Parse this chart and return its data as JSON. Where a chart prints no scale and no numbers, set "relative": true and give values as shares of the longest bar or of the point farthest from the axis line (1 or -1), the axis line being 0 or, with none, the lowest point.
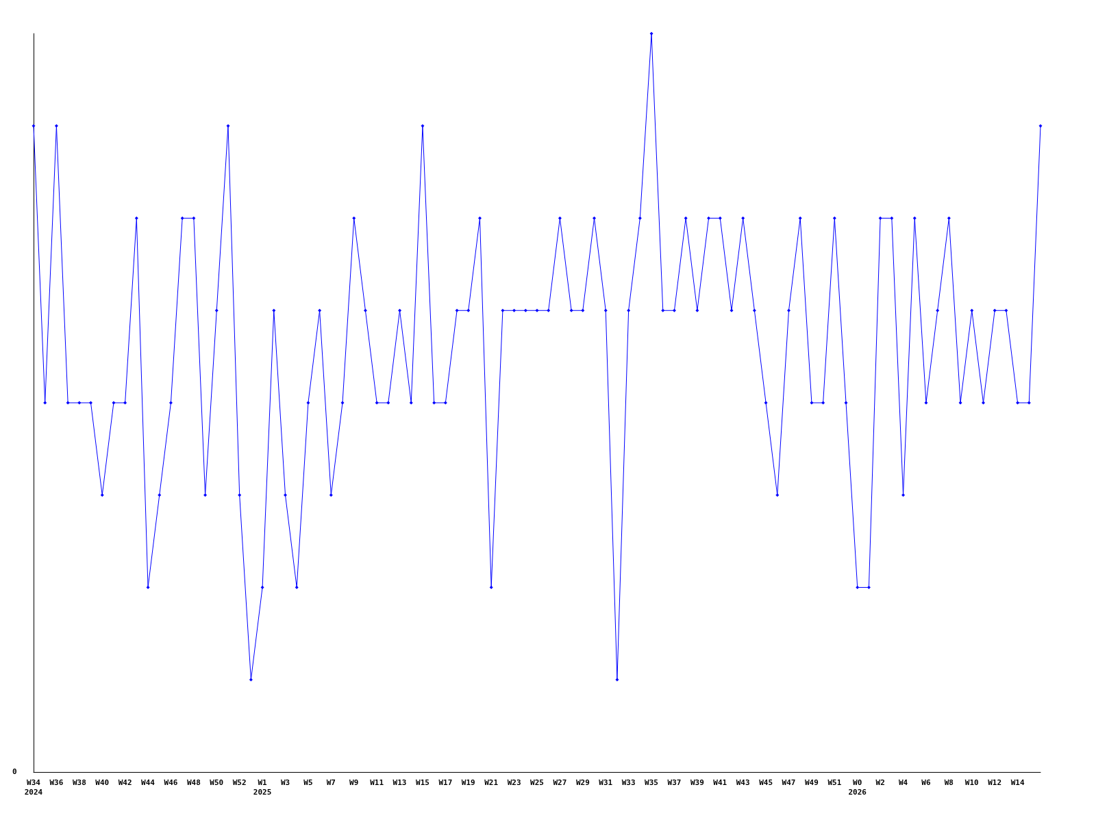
{
  "chart_data": {
    "type": "line",
    "relative": true,
    "color": "#0000ff",
    "marker": "diamond",
    "annotations": [
      "0"
    ],
    "categories": [
      "W34\n2024",
      null,
      "W36",
      null,
      "W38",
      null,
      "W40",
      null,
      "W42",
      null,
      "W44",
      null,
      "W46",
      null,
      "W48",
      null,
      "W50",
      null,
      "W52",
      null,
      "W1\n2025",
      null,
      "W3",
      null,
      "W5",
      null,
      "W7",
      null,
      "W9",
      null,
      "W11",
      null,
      "W13",
      null,
      "W15",
      null,
      "W17",
      null,
      "W19",
      null,
      "W21",
      null,
      "W23",
      null,
      "W25",
      null,
      "W27",
      null,
      "W29",
      null,
      "W31",
      null,
      "W33",
      null,
      "W35",
      null,
      "W37",
      null,
      "W39",
      null,
      "W41",
      null,
      "W43",
      null,
      "W45",
      null,
      "W47",
      null,
      "W49",
      null,
      "W51",
      null,
      "W0\n2026",
      null,
      "W2",
      null,
      "W4",
      null,
      "W6",
      null,
      "W8",
      null,
      "W10",
      null,
      "W12",
      null,
      "W14",
      null,
      null
    ],
    "values": [
      0.875,
      0.5,
      0.875,
      0.5,
      0.5,
      0.5,
      0.375,
      0.5,
      0.5,
      0.75,
      0.25,
      0.375,
      0.5,
      0.75,
      0.75,
      0.375,
      0.625,
      0.875,
      0.375,
      0.125,
      0.25,
      0.625,
      0.375,
      0.25,
      0.5,
      0.625,
      0.375,
      0.5,
      0.75,
      0.625,
      0.5,
      0.5,
      0.625,
      0.5,
      0.875,
      0.5,
      0.5,
      0.625,
      0.625,
      0.75,
      0.25,
      0.625,
      0.625,
      0.625,
      0.625,
      0.625,
      0.75,
      0.625,
      0.625,
      0.75,
      0.625,
      0.125,
      0.625,
      0.75,
      1,
      0.625,
      0.625,
      0.75,
      0.625,
      0.75,
      0.75,
      0.625,
      0.75,
      0.625,
      0.5,
      0.375,
      0.625,
      0.75,
      0.5,
      0.5,
      0.75,
      0.5,
      0.25,
      0.25,
      0.75,
      0.75,
      0.375,
      0.75,
      0.5,
      0.625,
      0.75,
      0.5,
      0.625,
      0.5,
      0.625,
      0.625,
      0.5,
      0.5,
      0.875
    ]
  }
}
